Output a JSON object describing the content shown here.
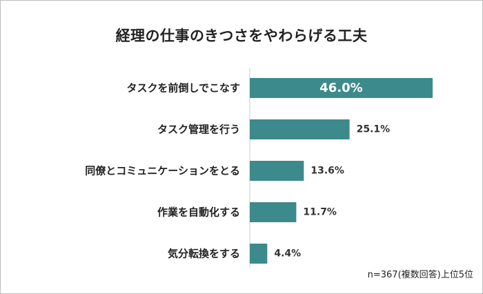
{
  "chart_data": {
    "type": "bar",
    "orientation": "horizontal",
    "title": "経理の仕事のきつさをやわらげる工夫",
    "categories": [
      "タスクを前倒しでこなす",
      "タスク管理を行う",
      "同僚とコミュニケーションをとる",
      "作業を自動化する",
      "気分転換をする"
    ],
    "values": [
      46.0,
      25.1,
      13.6,
      11.7,
      4.4
    ],
    "value_labels": [
      "46.0%",
      "25.1%",
      "13.6%",
      "11.7%",
      "4.4%"
    ],
    "unit": "%",
    "xlim": [
      0,
      46.0
    ],
    "bar_color": "#3d8a8c",
    "grid": false,
    "legend": "none"
  },
  "footnote": "n=367(複数回答)上位5位"
}
